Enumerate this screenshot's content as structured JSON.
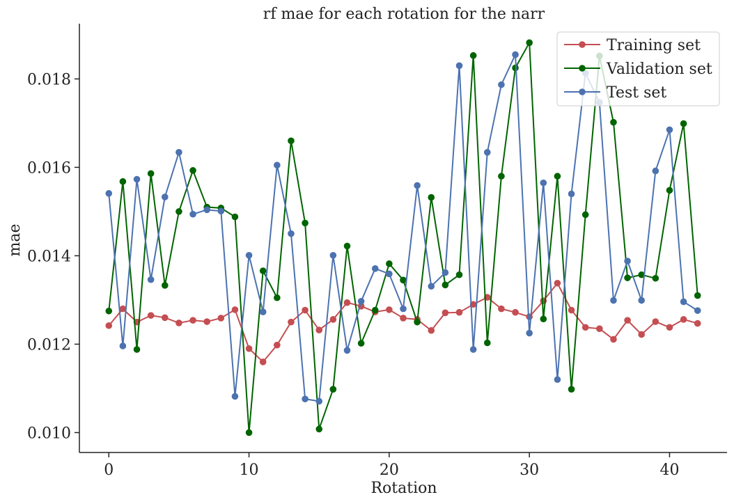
{
  "chart_data": {
    "type": "line",
    "title": "rf mae for each rotation for the narr",
    "xlabel": "Rotation",
    "ylabel": "mae",
    "xlim": [
      -2.1,
      44.1
    ],
    "ylim": [
      0.00955,
      0.01925
    ],
    "xticks": [
      0,
      10,
      20,
      30,
      40
    ],
    "yticks": [
      0.01,
      0.012,
      0.014,
      0.016,
      0.018
    ],
    "xtick_labels": [
      "0",
      "10",
      "20",
      "30",
      "40"
    ],
    "ytick_labels": [
      "0.010",
      "0.012",
      "0.014",
      "0.016",
      "0.018"
    ],
    "grid": false,
    "legend_position": "top-right",
    "x": [
      0,
      1,
      2,
      3,
      4,
      5,
      6,
      7,
      8,
      9,
      10,
      11,
      12,
      13,
      14,
      15,
      16,
      17,
      18,
      19,
      20,
      21,
      22,
      23,
      24,
      25,
      26,
      27,
      28,
      29,
      30,
      31,
      32,
      33,
      34,
      35,
      36,
      37,
      38,
      39,
      40,
      41,
      42
    ],
    "series": [
      {
        "name": "Training set",
        "color": "#c44e52",
        "values": [
          0.01242,
          0.0128,
          0.0125,
          0.01265,
          0.0126,
          0.01248,
          0.01254,
          0.01251,
          0.01259,
          0.01278,
          0.0119,
          0.0116,
          0.01198,
          0.0125,
          0.01277,
          0.01232,
          0.01256,
          0.01294,
          0.01286,
          0.01273,
          0.01278,
          0.01259,
          0.01256,
          0.01231,
          0.01271,
          0.01272,
          0.0129,
          0.01306,
          0.0128,
          0.01272,
          0.01262,
          0.01298,
          0.01338,
          0.01277,
          0.01238,
          0.01235,
          0.01211,
          0.01254,
          0.01222,
          0.01251,
          0.01238,
          0.01256,
          0.01247
        ]
      },
      {
        "name": "Validation set",
        "color": "#006400",
        "values": [
          0.01275,
          0.01568,
          0.01188,
          0.01586,
          0.01333,
          0.015,
          0.01593,
          0.0151,
          0.01508,
          0.01488,
          0.01,
          0.01366,
          0.01305,
          0.0166,
          0.01474,
          0.01008,
          0.01098,
          0.01422,
          0.01202,
          0.01277,
          0.01382,
          0.01345,
          0.0125,
          0.01532,
          0.01334,
          0.01357,
          0.01853,
          0.01203,
          0.0158,
          0.01825,
          0.01882,
          0.01257,
          0.0158,
          0.01098,
          0.01493,
          0.01852,
          0.01702,
          0.0135,
          0.01357,
          0.01349,
          0.01548,
          0.01699,
          0.0131
        ]
      },
      {
        "name": "Test set",
        "color": "#4c72b0",
        "values": [
          0.01541,
          0.01196,
          0.01573,
          0.01346,
          0.01533,
          0.01634,
          0.01494,
          0.01504,
          0.01501,
          0.01082,
          0.01401,
          0.01273,
          0.01605,
          0.0145,
          0.01076,
          0.01071,
          0.01401,
          0.01186,
          0.01297,
          0.01371,
          0.01359,
          0.0128,
          0.01559,
          0.01331,
          0.01362,
          0.0183,
          0.01188,
          0.01634,
          0.01787,
          0.01855,
          0.01225,
          0.01565,
          0.0112,
          0.0154,
          0.01813,
          0.01747,
          0.01299,
          0.01388,
          0.01299,
          0.01592,
          0.01685,
          0.01296,
          0.01276
        ]
      }
    ]
  }
}
